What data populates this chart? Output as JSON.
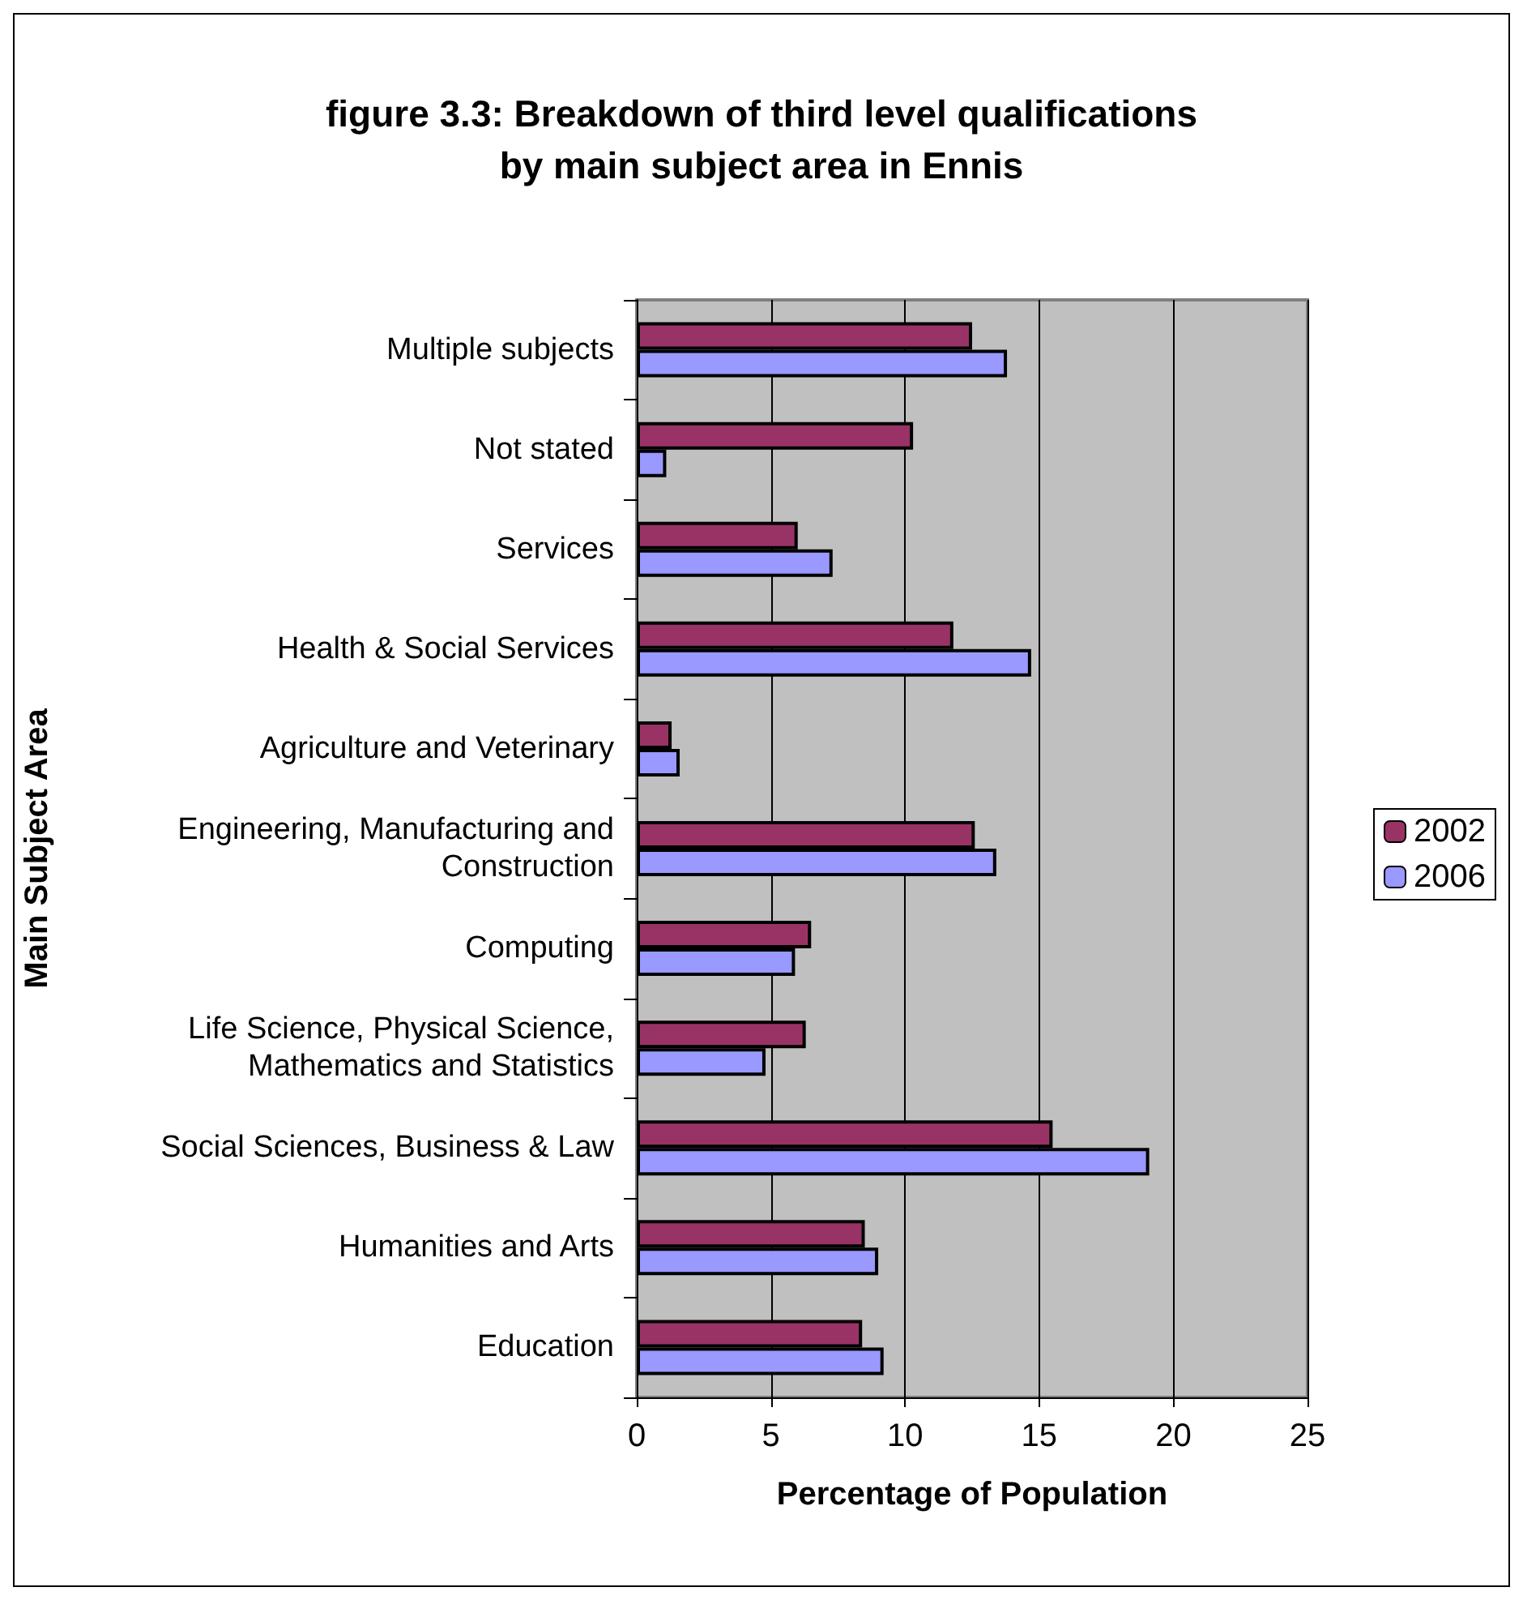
{
  "chart_data": {
    "type": "bar",
    "orientation": "horizontal",
    "title": "figure 3.3: Breakdown of third level qualifications\nby main subject area in Ennis",
    "xlabel": "Percentage of Population",
    "ylabel": "Main Subject Area",
    "categories": [
      "Multiple subjects",
      "Not stated",
      "Services",
      "Health & Social Services",
      "Agriculture and Veterinary",
      "Engineering, Manufacturing and\nConstruction",
      "Computing",
      "Life Science, Physical Science,\nMathematics and Statistics",
      "Social Sciences, Business & Law",
      "Humanities and Arts",
      "Education"
    ],
    "series": [
      {
        "name": "2002",
        "color": "#993366",
        "values": [
          12.5,
          10.3,
          6.0,
          11.8,
          1.3,
          12.6,
          6.5,
          6.3,
          15.5,
          8.5,
          8.4
        ]
      },
      {
        "name": "2006",
        "color": "#9999ff",
        "values": [
          13.8,
          1.1,
          7.3,
          14.7,
          1.6,
          13.4,
          5.9,
          4.8,
          19.1,
          9.0,
          9.2
        ]
      }
    ],
    "xlim": [
      0,
      25
    ],
    "xticks": [
      0,
      5,
      10,
      15,
      20,
      25
    ],
    "grid": "x",
    "legend": "right"
  }
}
